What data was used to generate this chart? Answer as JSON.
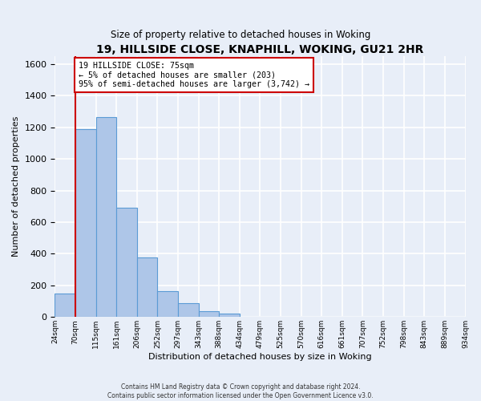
{
  "title": "19, HILLSIDE CLOSE, KNAPHILL, WOKING, GU21 2HR",
  "subtitle": "Size of property relative to detached houses in Woking",
  "xlabel": "Distribution of detached houses by size in Woking",
  "ylabel": "Number of detached properties",
  "bin_edges": [
    "24sqm",
    "70sqm",
    "115sqm",
    "161sqm",
    "206sqm",
    "252sqm",
    "297sqm",
    "343sqm",
    "388sqm",
    "434sqm",
    "479sqm",
    "525sqm",
    "570sqm",
    "616sqm",
    "661sqm",
    "707sqm",
    "752sqm",
    "798sqm",
    "843sqm",
    "889sqm",
    "934sqm"
  ],
  "bar_heights": [
    150,
    1190,
    1265,
    690,
    375,
    165,
    90,
    35,
    20,
    0,
    0,
    0,
    0,
    0,
    0,
    0,
    0,
    0,
    0,
    0
  ],
  "bar_color": "#aec6e8",
  "bar_edge_color": "#5b9bd5",
  "vline_x_idx": 1,
  "vline_color": "#cc0000",
  "annotation_line1": "19 HILLSIDE CLOSE: 75sqm",
  "annotation_line2": "← 5% of detached houses are smaller (203)",
  "annotation_line3": "95% of semi-detached houses are larger (3,742) →",
  "annotation_box_color": "#ffffff",
  "annotation_box_edge_color": "#cc0000",
  "ylim": [
    0,
    1650
  ],
  "yticks": [
    0,
    200,
    400,
    600,
    800,
    1000,
    1200,
    1400,
    1600
  ],
  "footnote": "Contains HM Land Registry data © Crown copyright and database right 2024.\nContains public sector information licensed under the Open Government Licence v3.0.",
  "background_color": "#e8eef8",
  "grid_color": "#ffffff"
}
